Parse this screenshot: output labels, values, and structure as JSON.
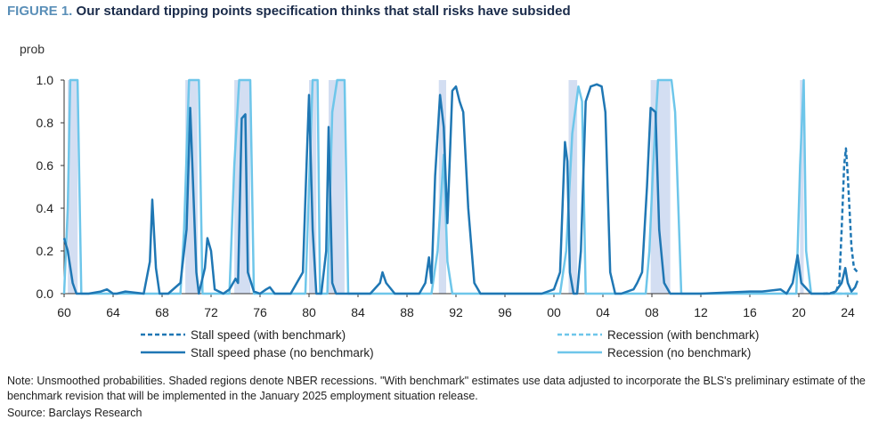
{
  "figure_label": "FIGURE 1.",
  "chart_data": {
    "type": "line",
    "title": "Our standard tipping points specification thinks that stall risks have subsided",
    "ylabel": "prob",
    "xlabel": "",
    "ylim": [
      0,
      1.0
    ],
    "xlim": [
      1960,
      2025
    ],
    "y_ticks": [
      "0.0",
      "0.2",
      "0.4",
      "0.6",
      "0.8",
      "1.0"
    ],
    "x_ticks": [
      "60",
      "64",
      "68",
      "72",
      "76",
      "80",
      "84",
      "88",
      "92",
      "96",
      "00",
      "04",
      "08",
      "12",
      "16",
      "20",
      "24"
    ],
    "legend_placement": "bottom",
    "recessions": [
      [
        1960.3,
        1961.1
      ],
      [
        1969.9,
        1970.9
      ],
      [
        1973.9,
        1975.2
      ],
      [
        1980.0,
        1980.6
      ],
      [
        1981.6,
        1982.9
      ],
      [
        1990.6,
        1991.2
      ],
      [
        2001.2,
        2001.9
      ],
      [
        2007.9,
        2009.5
      ],
      [
        2020.1,
        2020.4
      ]
    ],
    "series": [
      {
        "name": "Stall speed (with benchmark)",
        "color": "#1f77b4",
        "style": "dashed",
        "x": [
          2022.0,
          2023.0,
          2023.3,
          2023.5,
          2023.7,
          2023.85,
          2024.0,
          2024.15,
          2024.3,
          2024.5,
          2024.8
        ],
        "y": [
          0.0,
          0.005,
          0.05,
          0.3,
          0.6,
          0.68,
          0.55,
          0.38,
          0.22,
          0.12,
          0.1
        ]
      },
      {
        "name": "Recession (with benchmark)",
        "color": "#6ec6ea",
        "style": "dashed",
        "x": [
          2022.0,
          2024.8
        ],
        "y": [
          0.0,
          0.0
        ]
      },
      {
        "name": "Stall speed phase (no benchmark)",
        "color": "#1f77b4",
        "style": "solid",
        "x": [
          1960.0,
          1960.3,
          1960.7,
          1961.0,
          1962.0,
          1963.0,
          1963.5,
          1964.0,
          1964.3,
          1965.0,
          1966.5,
          1967.0,
          1967.2,
          1967.5,
          1967.8,
          1968.5,
          1969.5,
          1970.0,
          1970.3,
          1970.8,
          1971.0,
          1971.5,
          1971.7,
          1972.0,
          1972.3,
          1973.0,
          1973.5,
          1974.0,
          1974.2,
          1974.5,
          1974.8,
          1975.0,
          1975.5,
          1976.0,
          1976.5,
          1976.8,
          1977.2,
          1978.5,
          1979.5,
          1979.8,
          1980.0,
          1980.3,
          1980.6,
          1981.0,
          1981.4,
          1981.6,
          1981.9,
          1982.2,
          1983.0,
          1985.0,
          1985.8,
          1986.0,
          1986.3,
          1987.0,
          1989.0,
          1989.5,
          1989.8,
          1990.0,
          1990.3,
          1990.7,
          1991.0,
          1991.3,
          1991.7,
          1992.0,
          1992.3,
          1992.6,
          1993.0,
          1993.5,
          1994.0,
          1996.0,
          1999.0,
          2000.0,
          2000.5,
          2000.9,
          2001.1,
          2001.3,
          2001.6,
          2001.9,
          2002.2,
          2002.6,
          2003.0,
          2003.5,
          2003.9,
          2004.2,
          2004.6,
          2005.0,
          2005.5,
          2006.5,
          2006.8,
          2007.2,
          2007.6,
          2007.9,
          2008.3,
          2008.6,
          2009.0,
          2009.5,
          2010.5,
          2012.0,
          2016.0,
          2017.0,
          2018.5,
          2019.0,
          2019.5,
          2019.9,
          2020.2,
          2021.0,
          2022.5,
          2023.0,
          2023.5,
          2023.8,
          2024.0,
          2024.3,
          2024.6,
          2024.8
        ],
        "y": [
          0.26,
          0.2,
          0.05,
          0.0,
          0.0,
          0.01,
          0.02,
          0.0,
          0.0,
          0.01,
          0.0,
          0.15,
          0.44,
          0.12,
          0.0,
          0.0,
          0.05,
          0.3,
          0.87,
          0.1,
          0.0,
          0.12,
          0.26,
          0.2,
          0.02,
          0.0,
          0.02,
          0.07,
          0.05,
          0.82,
          0.84,
          0.1,
          0.01,
          0.0,
          0.02,
          0.03,
          0.0,
          0.0,
          0.1,
          0.6,
          0.93,
          0.3,
          0.0,
          0.0,
          0.2,
          0.78,
          0.05,
          0.0,
          0.0,
          0.0,
          0.05,
          0.1,
          0.05,
          0.0,
          0.0,
          0.05,
          0.17,
          0.05,
          0.55,
          0.93,
          0.78,
          0.33,
          0.95,
          0.97,
          0.9,
          0.85,
          0.4,
          0.05,
          0.0,
          0.0,
          0.0,
          0.02,
          0.1,
          0.71,
          0.62,
          0.1,
          0.0,
          0.0,
          0.2,
          0.9,
          0.97,
          0.98,
          0.97,
          0.85,
          0.1,
          0.0,
          0.0,
          0.02,
          0.05,
          0.1,
          0.5,
          0.87,
          0.85,
          0.3,
          0.05,
          0.0,
          0.0,
          0.0,
          0.01,
          0.01,
          0.02,
          0.0,
          0.05,
          0.18,
          0.05,
          0.0,
          0.0,
          0.01,
          0.05,
          0.12,
          0.05,
          0.01,
          0.03,
          0.06
        ]
      },
      {
        "name": "Recession (no benchmark)",
        "color": "#6ec6ea",
        "style": "solid",
        "x": [
          1960.0,
          1960.3,
          1960.5,
          1960.7,
          1961.1,
          1961.4,
          1962.0,
          1969.5,
          1969.8,
          1970.2,
          1971.0,
          1971.3,
          1973.5,
          1973.9,
          1974.3,
          1975.2,
          1975.5,
          1979.7,
          1980.0,
          1980.3,
          1980.7,
          1980.9,
          1981.5,
          1981.9,
          1982.3,
          1982.9,
          1983.2,
          1990.0,
          1990.5,
          1991.0,
          1991.3,
          1991.7,
          2000.5,
          2001.0,
          2001.5,
          2002.0,
          2002.3,
          2002.6,
          2007.5,
          2007.8,
          2008.1,
          2008.5,
          2009.6,
          2009.9,
          2010.4,
          2019.8,
          2020.1,
          2020.4,
          2020.6,
          2021.0,
          2024.8
        ],
        "y": [
          0.0,
          0.4,
          1.0,
          1.0,
          1.0,
          0.0,
          0.0,
          0.0,
          0.3,
          1.0,
          1.0,
          0.0,
          0.0,
          0.6,
          1.0,
          1.0,
          0.0,
          0.0,
          0.5,
          1.0,
          1.0,
          0.0,
          0.0,
          0.85,
          1.0,
          1.0,
          0.0,
          0.0,
          0.2,
          0.65,
          0.15,
          0.0,
          0.0,
          0.2,
          0.75,
          0.97,
          0.9,
          0.0,
          0.0,
          0.2,
          0.6,
          1.0,
          1.0,
          0.85,
          0.0,
          0.0,
          0.6,
          1.0,
          0.2,
          0.0,
          0.0
        ]
      }
    ]
  },
  "note": "Note: Unsmoothed probabilities. Shaded regions denote NBER recessions. \"With benchmark\" estimates use data adjusted to incorporate the BLS's preliminary estimate of the benchmark revision that will be implemented in the January 2025 employment situation release.",
  "source": "Source: Barclays Research"
}
